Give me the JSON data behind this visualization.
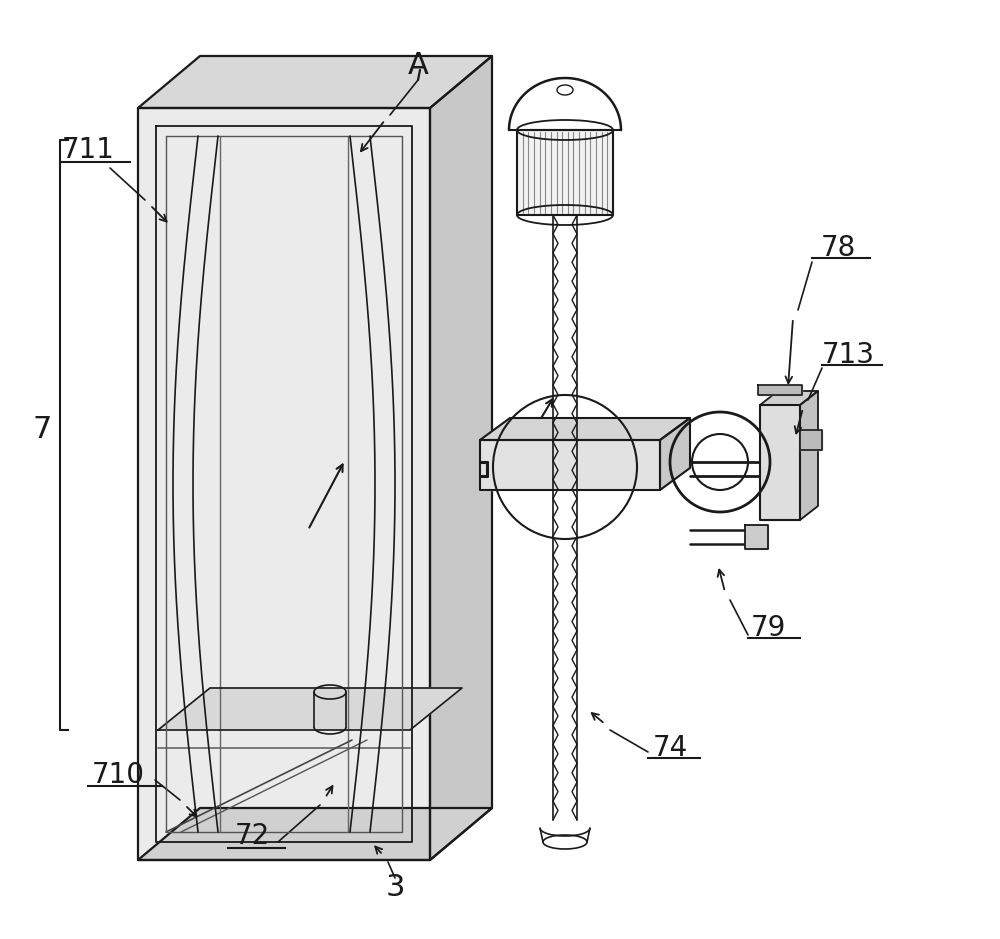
{
  "bg": "#ffffff",
  "lc": "#1a1a1a",
  "lw": 1.6,
  "fig_w": 10.0,
  "fig_h": 9.39,
  "dpi": 100
}
